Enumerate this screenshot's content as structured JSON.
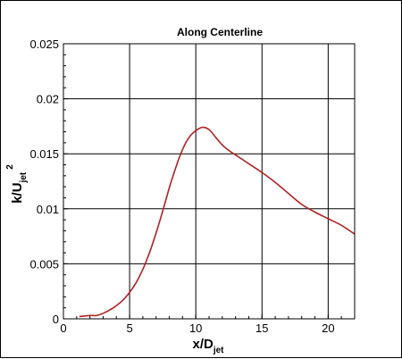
{
  "chart_data": {
    "type": "line",
    "title": "Along Centerline",
    "xlabel": {
      "main": "x/D",
      "sub": "jet"
    },
    "ylabel": {
      "main": "k/U",
      "sub": "jet",
      "sup": "2"
    },
    "xlim": [
      0,
      22
    ],
    "ylim": [
      0,
      0.025
    ],
    "x_ticks": [
      0,
      5,
      10,
      15,
      20
    ],
    "x_tick_labels": [
      "0",
      "5",
      "10",
      "15",
      "20"
    ],
    "y_ticks": [
      0,
      0.005,
      0.01,
      0.015,
      0.02,
      0.025
    ],
    "y_tick_labels": [
      "0",
      "0.005",
      "0.01",
      "0.015",
      "0.02",
      "0.025"
    ],
    "grid": true,
    "series": [
      {
        "color": "#b22222",
        "x": [
          1.2,
          2.0,
          2.5,
          3.0,
          3.5,
          4.0,
          4.5,
          5.0,
          5.5,
          6.0,
          6.5,
          7.0,
          7.5,
          8.0,
          8.5,
          9.0,
          9.5,
          10.0,
          10.5,
          11.0,
          11.5,
          12.0,
          12.5,
          13.0,
          14.0,
          15.0,
          16.0,
          17.0,
          18.0,
          19.0,
          20.0,
          21.0,
          22.0
        ],
        "y": [
          0.0002,
          0.0003,
          0.0003,
          0.0005,
          0.0008,
          0.0012,
          0.0017,
          0.0024,
          0.0033,
          0.0045,
          0.006,
          0.0078,
          0.0098,
          0.0119,
          0.0138,
          0.0154,
          0.0165,
          0.0171,
          0.0174,
          0.0172,
          0.0165,
          0.0158,
          0.0153,
          0.0149,
          0.0141,
          0.0133,
          0.0124,
          0.0114,
          0.0104,
          0.0097,
          0.0091,
          0.0085,
          0.0077
        ]
      }
    ]
  }
}
